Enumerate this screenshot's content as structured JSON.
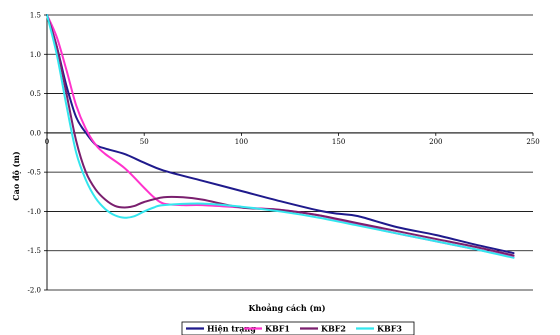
{
  "chart_data": {
    "type": "line",
    "title": "",
    "xlabel": "Khoảng cách (m)",
    "ylabel": "Cao độ (m)",
    "xlim": [
      0,
      250
    ],
    "ylim": [
      -2.0,
      1.5
    ],
    "x_ticks": [
      "0",
      "50",
      "100",
      "150",
      "200",
      "250"
    ],
    "y_ticks": [
      "1.5",
      "1.0",
      "0.5",
      "0.0",
      "-0.5",
      "-1.0",
      "-1.5",
      "-2.0"
    ],
    "grid": "horizontal",
    "legend": "bottom",
    "series": [
      {
        "name": "Hiện trạng",
        "color": "#1f1a8c",
        "points": [
          [
            0,
            1.5
          ],
          [
            5,
            1.1
          ],
          [
            10,
            0.6
          ],
          [
            15,
            0.2
          ],
          [
            20,
            0.0
          ],
          [
            25,
            -0.15
          ],
          [
            30,
            -0.2
          ],
          [
            40,
            -0.27
          ],
          [
            50,
            -0.38
          ],
          [
            60,
            -0.48
          ],
          [
            80,
            -0.61
          ],
          [
            100,
            -0.74
          ],
          [
            120,
            -0.87
          ],
          [
            140,
            -0.99
          ],
          [
            150,
            -1.03
          ],
          [
            160,
            -1.06
          ],
          [
            180,
            -1.2
          ],
          [
            200,
            -1.3
          ],
          [
            220,
            -1.42
          ],
          [
            240,
            -1.53
          ]
        ]
      },
      {
        "name": "KBF1",
        "color": "#ff33cc",
        "points": [
          [
            0,
            1.5
          ],
          [
            5,
            1.22
          ],
          [
            10,
            0.8
          ],
          [
            15,
            0.35
          ],
          [
            20,
            0.05
          ],
          [
            25,
            -0.15
          ],
          [
            30,
            -0.27
          ],
          [
            40,
            -0.45
          ],
          [
            50,
            -0.7
          ],
          [
            55,
            -0.82
          ],
          [
            60,
            -0.9
          ],
          [
            70,
            -0.92
          ],
          [
            80,
            -0.92
          ],
          [
            100,
            -0.95
          ],
          [
            120,
            -0.98
          ],
          [
            140,
            -1.05
          ],
          [
            160,
            -1.17
          ],
          [
            180,
            -1.28
          ],
          [
            200,
            -1.38
          ],
          [
            220,
            -1.48
          ],
          [
            240,
            -1.58
          ]
        ]
      },
      {
        "name": "KBF2",
        "color": "#7a1f6e",
        "points": [
          [
            0,
            1.5
          ],
          [
            5,
            1.1
          ],
          [
            10,
            0.5
          ],
          [
            15,
            -0.1
          ],
          [
            20,
            -0.5
          ],
          [
            25,
            -0.72
          ],
          [
            30,
            -0.85
          ],
          [
            35,
            -0.93
          ],
          [
            40,
            -0.95
          ],
          [
            45,
            -0.93
          ],
          [
            50,
            -0.88
          ],
          [
            60,
            -0.82
          ],
          [
            70,
            -0.82
          ],
          [
            80,
            -0.85
          ],
          [
            100,
            -0.95
          ],
          [
            120,
            -0.98
          ],
          [
            140,
            -1.05
          ],
          [
            160,
            -1.15
          ],
          [
            180,
            -1.25
          ],
          [
            200,
            -1.35
          ],
          [
            220,
            -1.45
          ],
          [
            240,
            -1.56
          ]
        ]
      },
      {
        "name": "KBF3",
        "color": "#33e6ee",
        "points": [
          [
            0,
            1.5
          ],
          [
            5,
            1.0
          ],
          [
            10,
            0.35
          ],
          [
            15,
            -0.25
          ],
          [
            20,
            -0.6
          ],
          [
            25,
            -0.83
          ],
          [
            30,
            -0.97
          ],
          [
            35,
            -1.05
          ],
          [
            40,
            -1.08
          ],
          [
            45,
            -1.06
          ],
          [
            50,
            -1.0
          ],
          [
            55,
            -0.95
          ],
          [
            60,
            -0.92
          ],
          [
            80,
            -0.9
          ],
          [
            100,
            -0.94
          ],
          [
            120,
            -1.0
          ],
          [
            140,
            -1.08
          ],
          [
            160,
            -1.18
          ],
          [
            180,
            -1.28
          ],
          [
            200,
            -1.38
          ],
          [
            220,
            -1.48
          ],
          [
            240,
            -1.59
          ]
        ]
      }
    ]
  }
}
